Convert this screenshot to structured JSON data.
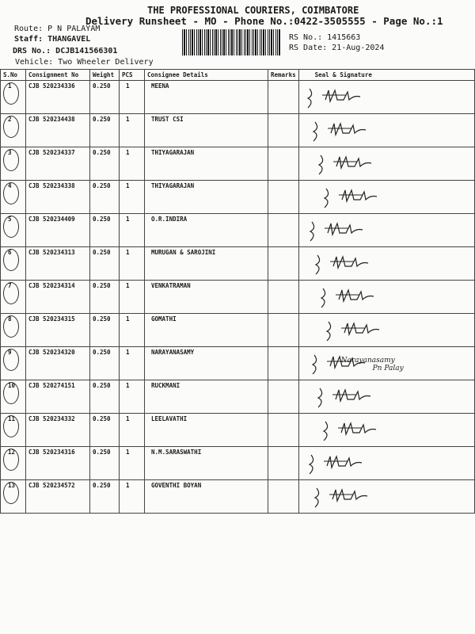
{
  "header": {
    "company": "THE PROFESSIONAL COURIERS, COIMBATORE",
    "subtitle": "Delivery Runsheet - MO - Phone No.:0422-3505555 - Page No.:1",
    "route": "Route: P N PALAYAM",
    "staff": "Staff: THANGAVEL",
    "drs": "DRS No.: DCJB141566301",
    "vehicle": "Vehicle: Two Wheeler Delivery",
    "rs_no": "RS No.: 1415663",
    "rs_date": "RS Date: 21-Aug-2024"
  },
  "table": {
    "columns": [
      "S.No",
      "Consignment No",
      "Weight",
      "PCS",
      "Consignee Details",
      "Remarks",
      "Seal & Signature"
    ],
    "rows": [
      {
        "sno": "1",
        "cn": "CJB 520234336",
        "wt": "0.250",
        "pcs": "1",
        "name": "MEENA"
      },
      {
        "sno": "2",
        "cn": "CJB 520234438",
        "wt": "0.250",
        "pcs": "1",
        "name": "TRUST CSI"
      },
      {
        "sno": "3",
        "cn": "CJB 520234337",
        "wt": "0.250",
        "pcs": "1",
        "name": "THIYAGARAJAN"
      },
      {
        "sno": "4",
        "cn": "CJB 520234338",
        "wt": "0.250",
        "pcs": "1",
        "name": "THIYAGARAJAN"
      },
      {
        "sno": "5",
        "cn": "CJB 520234409",
        "wt": "0.250",
        "pcs": "1",
        "name": "O.R.INDIRA"
      },
      {
        "sno": "6",
        "cn": "CJB 520234313",
        "wt": "0.250",
        "pcs": "1",
        "name": "MURUGAN & SAROJINI"
      },
      {
        "sno": "7",
        "cn": "CJB 520234314",
        "wt": "0.250",
        "pcs": "1",
        "name": "VENKATRAMAN"
      },
      {
        "sno": "8",
        "cn": "CJB 520234315",
        "wt": "0.250",
        "pcs": "1",
        "name": "GOMATHI"
      },
      {
        "sno": "9",
        "cn": "CJB 520234320",
        "wt": "0.250",
        "pcs": "1",
        "name": "NARAYANASAMY",
        "note": "Narayanasamy",
        "note2": "Pn Palay"
      },
      {
        "sno": "10",
        "cn": "CJB 520274151",
        "wt": "0.250",
        "pcs": "1",
        "name": "RUCKMANI"
      },
      {
        "sno": "11",
        "cn": "CJB 520234332",
        "wt": "0.250",
        "pcs": "1",
        "name": "LEELAVATHI"
      },
      {
        "sno": "12",
        "cn": "CJB 520234316",
        "wt": "0.250",
        "pcs": "1",
        "name": "N.M.SARASWATHI"
      },
      {
        "sno": "13",
        "cn": "CJB 520234572",
        "wt": "0.250",
        "pcs": "1",
        "name": "GOVENTHI BOYAN"
      }
    ]
  }
}
